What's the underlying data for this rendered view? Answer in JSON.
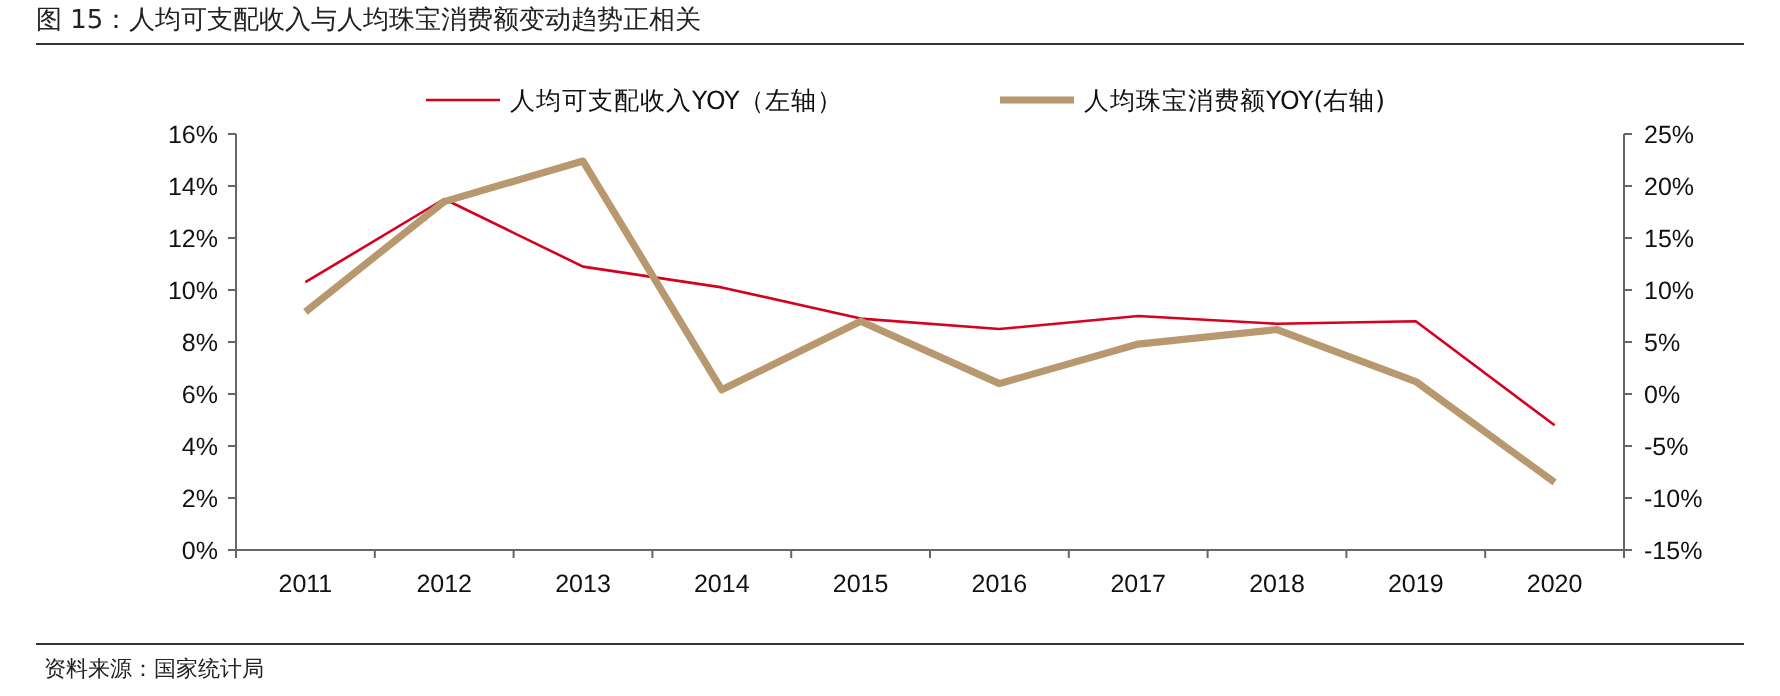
{
  "chart_data": {
    "type": "line",
    "title": "图 15：人均可支配收入与人均珠宝消费额变动趋势正相关",
    "categories": [
      "2011",
      "2012",
      "2013",
      "2014",
      "2015",
      "2016",
      "2017",
      "2018",
      "2019",
      "2020"
    ],
    "series": [
      {
        "name": "人均可支配收入YOY（左轴）",
        "color": "#d7001e",
        "values": [
          10.3,
          13.5,
          10.9,
          10.1,
          8.9,
          8.5,
          9.0,
          8.7,
          8.8,
          4.8
        ]
      },
      {
        "name": "人均珠宝消费额YOY(右轴)",
        "color": "#b8986f",
        "axis": "y2",
        "values": [
          7.9,
          18.5,
          22.4,
          0.4,
          7.0,
          1.0,
          4.8,
          6.2,
          1.2,
          -8.5
        ]
      }
    ],
    "ylim": [
      0,
      16
    ],
    "yticks": [
      {
        "value": 0,
        "label": "0%"
      },
      {
        "value": 2,
        "label": "2%"
      },
      {
        "value": 4,
        "label": "4%"
      },
      {
        "value": 6,
        "label": "6%"
      },
      {
        "value": 8,
        "label": "8%"
      },
      {
        "value": 10,
        "label": "10%"
      },
      {
        "value": 12,
        "label": "12%"
      },
      {
        "value": 14,
        "label": "14%"
      },
      {
        "value": 16,
        "label": "16%"
      }
    ],
    "y2lim": [
      -15,
      25
    ],
    "y2ticks": [
      {
        "value": -15,
        "label": "-15%"
      },
      {
        "value": -10,
        "label": "-10%"
      },
      {
        "value": -5,
        "label": "-5%"
      },
      {
        "value": 0,
        "label": "0%"
      },
      {
        "value": 5,
        "label": "5%"
      },
      {
        "value": 10,
        "label": "10%"
      },
      {
        "value": 15,
        "label": "15%"
      },
      {
        "value": 20,
        "label": "20%"
      },
      {
        "value": 25,
        "label": "25%"
      }
    ],
    "legend": "top",
    "grid": false,
    "marker": "none",
    "line_style": "solid",
    "annotations": [
      "资料来源：国家统计局"
    ]
  }
}
